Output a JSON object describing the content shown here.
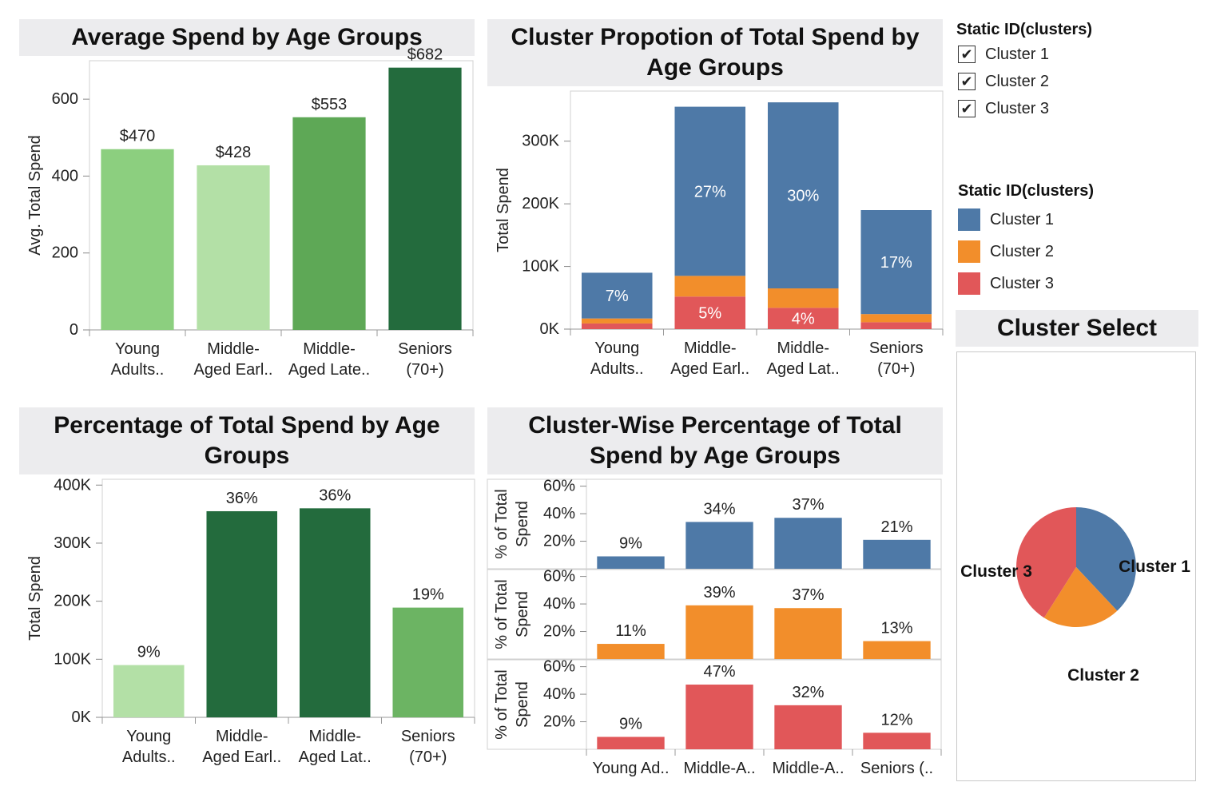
{
  "panels": {
    "avg_title": "Average Spend by Age Groups",
    "prop_title_l1": "Cluster Propotion of Total Spend by",
    "prop_title_l2": "Age Groups",
    "pct_title_l1": "Percentage of Total Spend by Age",
    "pct_title_l2": "Groups",
    "cw_title_l1": "Cluster-Wise Percentage of Total",
    "cw_title_l2": "Spend by Age Groups",
    "select_title": "Cluster Select"
  },
  "filter_legend": {
    "title": "Static ID(clusters)",
    "items": [
      {
        "label": "Cluster 1",
        "checked": true,
        "mark": "✔"
      },
      {
        "label": "Cluster 2",
        "checked": true,
        "mark": "✔"
      },
      {
        "label": "Cluster 3",
        "checked": true,
        "mark": "✔"
      }
    ]
  },
  "color_legend": {
    "title": "Static ID(clusters)",
    "items": [
      {
        "label": "Cluster 1",
        "color": "#4e79a7"
      },
      {
        "label": "Cluster 2",
        "color": "#f28e2b"
      },
      {
        "label": "Cluster 3",
        "color": "#e15759"
      }
    ]
  },
  "chart_data": [
    {
      "id": "avg",
      "type": "bar",
      "title": "Average Spend by Age Groups",
      "ylabel": "Avg. Total Spend",
      "ylim": [
        0,
        700
      ],
      "yticks": [
        0,
        200,
        400,
        600
      ],
      "ytick_labels": [
        "0",
        "200",
        "400",
        "600"
      ],
      "categories": [
        [
          "Young",
          "Adults.."
        ],
        [
          "Middle-",
          "Aged Earl.."
        ],
        [
          "Middle-",
          "Aged Late.."
        ],
        [
          "Seniors",
          "(70+)"
        ]
      ],
      "values": [
        470,
        428,
        553,
        682
      ],
      "labels": [
        "$470",
        "$428",
        "$553",
        "$682"
      ],
      "colors": [
        "#8ccf7f",
        "#b3e0a6",
        "#5ea856",
        "#236b3d"
      ]
    },
    {
      "id": "prop",
      "type": "bar",
      "stacked": true,
      "title": "Cluster Propotion of Total Spend by Age Groups",
      "ylabel": "Total Spend",
      "ylim": [
        0,
        380000
      ],
      "yticks": [
        0,
        100000,
        200000,
        300000
      ],
      "ytick_labels": [
        "0K",
        "100K",
        "200K",
        "300K"
      ],
      "categories": [
        [
          "Young",
          "Adults.."
        ],
        [
          "Middle-",
          "Aged Earl.."
        ],
        [
          "Middle-",
          "Aged Lat.."
        ],
        [
          "Seniors",
          "(70+)"
        ]
      ],
      "series": [
        {
          "name": "Cluster 3",
          "color": "#e15759",
          "values": [
            9000,
            52000,
            34000,
            11000
          ],
          "labels": [
            "",
            "5%",
            "4%",
            ""
          ]
        },
        {
          "name": "Cluster 2",
          "color": "#f28e2b",
          "values": [
            8000,
            33000,
            31000,
            13000
          ],
          "labels": [
            "",
            "",
            "",
            ""
          ]
        },
        {
          "name": "Cluster 1",
          "color": "#4e79a7",
          "values": [
            73000,
            270000,
            297000,
            166000
          ],
          "labels": [
            "7%",
            "27%",
            "30%",
            "17%"
          ]
        }
      ]
    },
    {
      "id": "pct",
      "type": "bar",
      "title": "Percentage of Total Spend by Age Groups",
      "ylabel": "Total Spend",
      "ylim": [
        0,
        410000
      ],
      "yticks": [
        0,
        100000,
        200000,
        300000,
        400000
      ],
      "ytick_labels": [
        "0K",
        "100K",
        "200K",
        "300K",
        "400K"
      ],
      "categories": [
        [
          "Young",
          "Adults.."
        ],
        [
          "Middle-",
          "Aged Earl.."
        ],
        [
          "Middle-",
          "Aged Lat.."
        ],
        [
          "Seniors",
          "(70+)"
        ]
      ],
      "values": [
        90000,
        355000,
        360000,
        189000
      ],
      "labels": [
        "9%",
        "36%",
        "36%",
        "19%"
      ],
      "colors": [
        "#b3e0a6",
        "#236b3d",
        "#236b3d",
        "#6cb463"
      ]
    },
    {
      "id": "cw",
      "type": "bar",
      "title": "Cluster-Wise Percentage of Total Spend by Age Groups",
      "ylabel_l1": "% of Total",
      "ylabel_l2": "Spend",
      "ylim": [
        0,
        65
      ],
      "yticks": [
        20,
        40,
        60
      ],
      "ytick_labels": [
        "20%",
        "40%",
        "60%"
      ],
      "categories": [
        "Young Ad..",
        "Middle-A..",
        "Middle-A..",
        "Seniors (.."
      ],
      "series": [
        {
          "name": "Cluster 1",
          "color": "#4e79a7",
          "values": [
            9,
            34,
            37,
            21
          ],
          "labels": [
            "9%",
            "34%",
            "37%",
            "21%"
          ]
        },
        {
          "name": "Cluster 2",
          "color": "#f28e2b",
          "values": [
            11,
            39,
            37,
            13
          ],
          "labels": [
            "11%",
            "39%",
            "37%",
            "13%"
          ]
        },
        {
          "name": "Cluster 3",
          "color": "#e15759",
          "values": [
            9,
            47,
            32,
            12
          ],
          "labels": [
            "9%",
            "47%",
            "32%",
            "12%"
          ]
        }
      ]
    },
    {
      "id": "pie",
      "type": "pie",
      "title": "Cluster Select",
      "slices": [
        {
          "name": "Cluster 1",
          "value": 38,
          "color": "#4e79a7"
        },
        {
          "name": "Cluster 2",
          "value": 21,
          "color": "#f28e2b"
        },
        {
          "name": "Cluster 3",
          "value": 41,
          "color": "#e15759"
        }
      ]
    }
  ]
}
